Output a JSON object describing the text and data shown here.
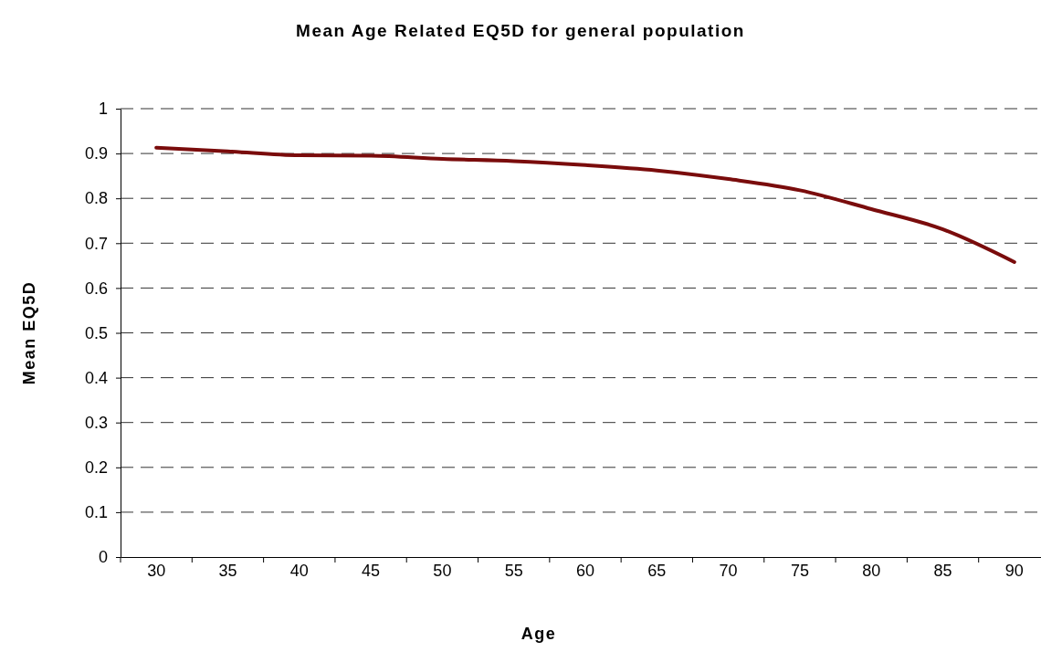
{
  "chart_data": {
    "type": "line",
    "title": "Mean Age Related EQ5D for general population",
    "xlabel": "Age",
    "ylabel": "Mean EQ5D",
    "categories": [
      "30",
      "35",
      "40",
      "45",
      "50",
      "55",
      "60",
      "65",
      "70",
      "75",
      "80",
      "85",
      "90"
    ],
    "series": [
      {
        "color": "#7a0c0c",
        "values": [
          0.913,
          0.905,
          0.896,
          0.895,
          0.888,
          0.883,
          0.874,
          0.862,
          0.843,
          0.818,
          0.776,
          0.731,
          0.658
        ]
      }
    ],
    "ylim": [
      0,
      1
    ],
    "yticks": [
      0,
      0.1,
      0.2,
      0.3,
      0.4,
      0.5,
      0.6,
      0.7,
      0.8,
      0.9,
      1
    ],
    "grid": "y",
    "marker": "none",
    "line_style": "solid"
  }
}
